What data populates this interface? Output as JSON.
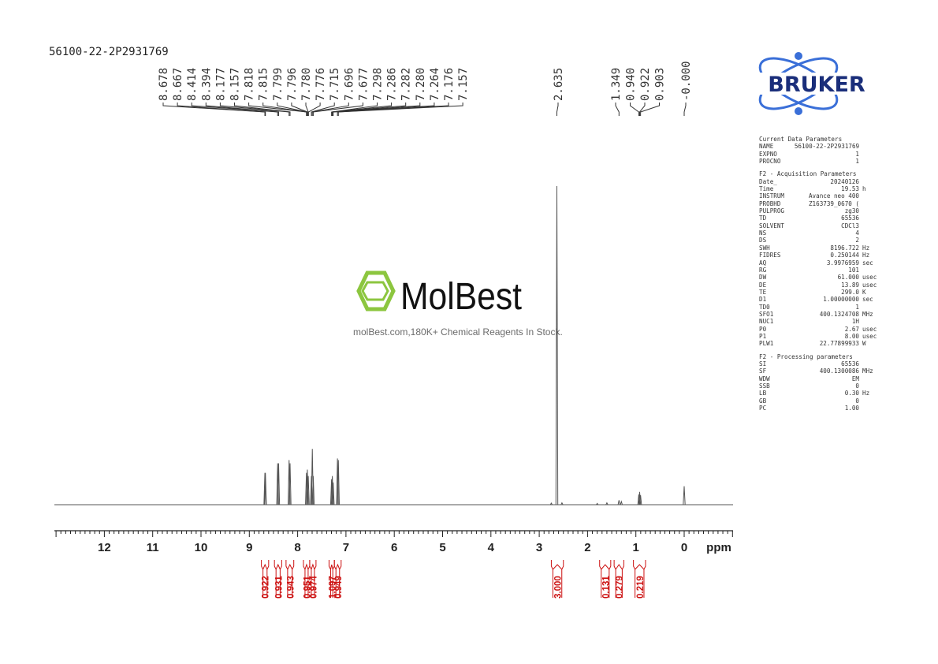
{
  "sample": {
    "name": "56100-22-2P2931769"
  },
  "watermark": {
    "brand": "MolBest",
    "tagline": "molBest.com,180K+ Chemical Reagents In Stock."
  },
  "bruker_logo": {
    "text": "BRUKER",
    "color": "#1a2e7a"
  },
  "colors": {
    "integral": "#cc1111",
    "spectrum": "#555555",
    "molbest_green": "#8cc63f"
  },
  "params": {
    "groups": [
      {
        "title": "Current Data Parameters",
        "rows": [
          {
            "k": "NAME",
            "v": "56100-22-2P2931769",
            "u": ""
          },
          {
            "k": "EXPNO",
            "v": "1",
            "u": ""
          },
          {
            "k": "PROCNO",
            "v": "1",
            "u": ""
          }
        ]
      },
      {
        "title": "F2 - Acquisition Parameters",
        "rows": [
          {
            "k": "Date_",
            "v": "20240126",
            "u": ""
          },
          {
            "k": "Time",
            "v": "19.53",
            "u": "h"
          },
          {
            "k": "INSTRUM",
            "v": "Avance neo 400",
            "u": ""
          },
          {
            "k": "PROBHD",
            "v": "Z163739_0670 (",
            "u": ""
          },
          {
            "k": "PULPROG",
            "v": "zg30",
            "u": ""
          },
          {
            "k": "TD",
            "v": "65536",
            "u": ""
          },
          {
            "k": "SOLVENT",
            "v": "CDCl3",
            "u": ""
          },
          {
            "k": "NS",
            "v": "4",
            "u": ""
          },
          {
            "k": "DS",
            "v": "2",
            "u": ""
          },
          {
            "k": "SWH",
            "v": "8196.722",
            "u": "Hz"
          },
          {
            "k": "FIDRES",
            "v": "0.250144",
            "u": "Hz"
          },
          {
            "k": "AQ",
            "v": "3.9976959",
            "u": "sec"
          },
          {
            "k": "RG",
            "v": "101",
            "u": ""
          },
          {
            "k": "DW",
            "v": "61.000",
            "u": "usec"
          },
          {
            "k": "DE",
            "v": "13.89",
            "u": "usec"
          },
          {
            "k": "TE",
            "v": "299.0",
            "u": "K"
          },
          {
            "k": "D1",
            "v": "1.00000000",
            "u": "sec"
          },
          {
            "k": "TD0",
            "v": "1",
            "u": ""
          },
          {
            "k": "SFO1",
            "v": "400.1324708",
            "u": "MHz"
          },
          {
            "k": "NUC1",
            "v": "1H",
            "u": ""
          },
          {
            "k": "P0",
            "v": "2.67",
            "u": "usec"
          },
          {
            "k": "P1",
            "v": "8.00",
            "u": "usec"
          },
          {
            "k": "PLW1",
            "v": "22.77899933",
            "u": "W"
          }
        ]
      },
      {
        "title": "F2 - Processing parameters",
        "rows": [
          {
            "k": "SI",
            "v": "65536",
            "u": ""
          },
          {
            "k": "SF",
            "v": "400.1300086",
            "u": "MHz"
          },
          {
            "k": "WDW",
            "v": "EM",
            "u": ""
          },
          {
            "k": "SSB",
            "v": "0",
            "u": ""
          },
          {
            "k": "LB",
            "v": "0.30",
            "u": "Hz"
          },
          {
            "k": "GB",
            "v": "0",
            "u": ""
          },
          {
            "k": "PC",
            "v": "1.00",
            "u": ""
          }
        ]
      }
    ]
  },
  "chart_data": {
    "type": "line",
    "title": "",
    "xlabel": "ppm",
    "ylabel": "",
    "xlim": [
      14.0,
      -1.0
    ],
    "x_ticks": [
      "12",
      "11",
      "10",
      "9",
      "8",
      "7",
      "6",
      "5",
      "4",
      "3",
      "2",
      "1",
      "0"
    ],
    "x_tick_values": [
      12,
      11,
      10,
      9,
      8,
      7,
      6,
      5,
      4,
      3,
      2,
      1,
      0
    ],
    "peak_labels": {
      "group1": [
        "8.678",
        "8.667",
        "8.414",
        "8.394",
        "8.177",
        "8.157",
        "7.818",
        "7.815",
        "7.799",
        "7.796",
        "7.780",
        "7.776",
        "7.715",
        "7.696",
        "7.677",
        "7.298",
        "7.286",
        "7.282",
        "7.280",
        "7.264",
        "7.176",
        "7.157"
      ],
      "group2": [
        "2.635"
      ],
      "group3": [
        "1.349",
        "0.940",
        "0.922",
        "0.903"
      ],
      "group4": [
        "-0.000"
      ]
    },
    "peaks": [
      {
        "ppm": 8.678,
        "h": 0.1
      },
      {
        "ppm": 8.667,
        "h": 0.1
      },
      {
        "ppm": 8.414,
        "h": 0.13
      },
      {
        "ppm": 8.394,
        "h": 0.13
      },
      {
        "ppm": 8.177,
        "h": 0.14
      },
      {
        "ppm": 8.157,
        "h": 0.13
      },
      {
        "ppm": 7.818,
        "h": 0.1
      },
      {
        "ppm": 7.799,
        "h": 0.11
      },
      {
        "ppm": 7.78,
        "h": 0.09
      },
      {
        "ppm": 7.715,
        "h": 0.09
      },
      {
        "ppm": 7.696,
        "h": 0.175
      },
      {
        "ppm": 7.677,
        "h": 0.09
      },
      {
        "ppm": 7.298,
        "h": 0.08
      },
      {
        "ppm": 7.282,
        "h": 0.09
      },
      {
        "ppm": 7.264,
        "h": 0.07
      },
      {
        "ppm": 7.176,
        "h": 0.145
      },
      {
        "ppm": 7.157,
        "h": 0.14
      },
      {
        "ppm": 2.635,
        "h": 1.0
      },
      {
        "ppm": 1.349,
        "h": 0.014
      },
      {
        "ppm": 1.3,
        "h": 0.01
      },
      {
        "ppm": 1.6,
        "h": 0.006
      },
      {
        "ppm": 1.8,
        "h": 0.004
      },
      {
        "ppm": 0.94,
        "h": 0.032
      },
      {
        "ppm": 0.922,
        "h": 0.04
      },
      {
        "ppm": 0.903,
        "h": 0.03
      },
      {
        "ppm": 2.53,
        "h": 0.006
      },
      {
        "ppm": 2.75,
        "h": 0.005
      },
      {
        "ppm": 0.0,
        "h": 0.058
      }
    ],
    "integrals": [
      {
        "from": 8.75,
        "to": 8.6,
        "value": "0.922"
      },
      {
        "from": 8.48,
        "to": 8.33,
        "value": "0.931"
      },
      {
        "from": 8.24,
        "to": 8.08,
        "value": "0.943"
      },
      {
        "from": 7.88,
        "to": 7.75,
        "value": "0.951"
      },
      {
        "from": 7.75,
        "to": 7.62,
        "value": "0.974"
      },
      {
        "from": 7.35,
        "to": 7.24,
        "value": "1.097"
      },
      {
        "from": 7.24,
        "to": 7.1,
        "value": "0.949"
      },
      {
        "from": 2.75,
        "to": 2.5,
        "value": "3.000"
      },
      {
        "from": 1.75,
        "to": 1.52,
        "value": "0.131"
      },
      {
        "from": 1.45,
        "to": 1.25,
        "value": "0.279"
      },
      {
        "from": 1.05,
        "to": 0.8,
        "value": "0.219"
      }
    ]
  }
}
